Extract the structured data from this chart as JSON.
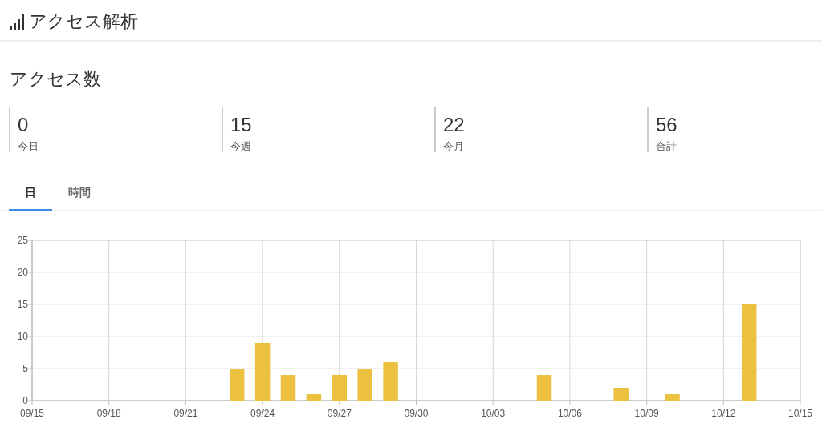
{
  "chart_data": [
    {
      "type": "other",
      "title": "アクセス解析",
      "subtitle": "アクセス数",
      "annotations": [
        "0",
        "今日",
        "15",
        "今週",
        "22",
        "今月",
        "56",
        "合計",
        "日",
        "時間"
      ]
    },
    {
      "type": "bar",
      "x": [
        "--09-23",
        "--09-24",
        "--09-25",
        "--09-26",
        "--09-27",
        "--09-28",
        "--09-29",
        "--10-05",
        "--10-08",
        "--10-10",
        "--10-13"
      ],
      "values": [
        5,
        9,
        4,
        1,
        4,
        5,
        6,
        4,
        2,
        1,
        15
      ],
      "color": "#ecc140",
      "xlim": [
        "--09-15",
        "--10-15"
      ],
      "xticks": [
        {
          "value": "--09-15",
          "label": "09/15"
        },
        {
          "value": "--09-18",
          "label": "09/18"
        },
        {
          "value": "--09-21",
          "label": "09/21"
        },
        {
          "value": "--09-24",
          "label": "09/24"
        },
        {
          "value": "--09-27",
          "label": "09/27"
        },
        {
          "value": "--09-30",
          "label": "09/30"
        },
        {
          "value": "--10-03",
          "label": "10/03"
        },
        {
          "value": "--10-06",
          "label": "10/06"
        },
        {
          "value": "--10-09",
          "label": "10/09"
        },
        {
          "value": "--10-12",
          "label": "10/12"
        },
        {
          "value": "--10-15",
          "label": "10/15"
        }
      ],
      "ylim": [
        0,
        25
      ],
      "yticks": [
        0,
        5,
        10,
        15,
        20,
        25
      ],
      "grid": true
    }
  ]
}
